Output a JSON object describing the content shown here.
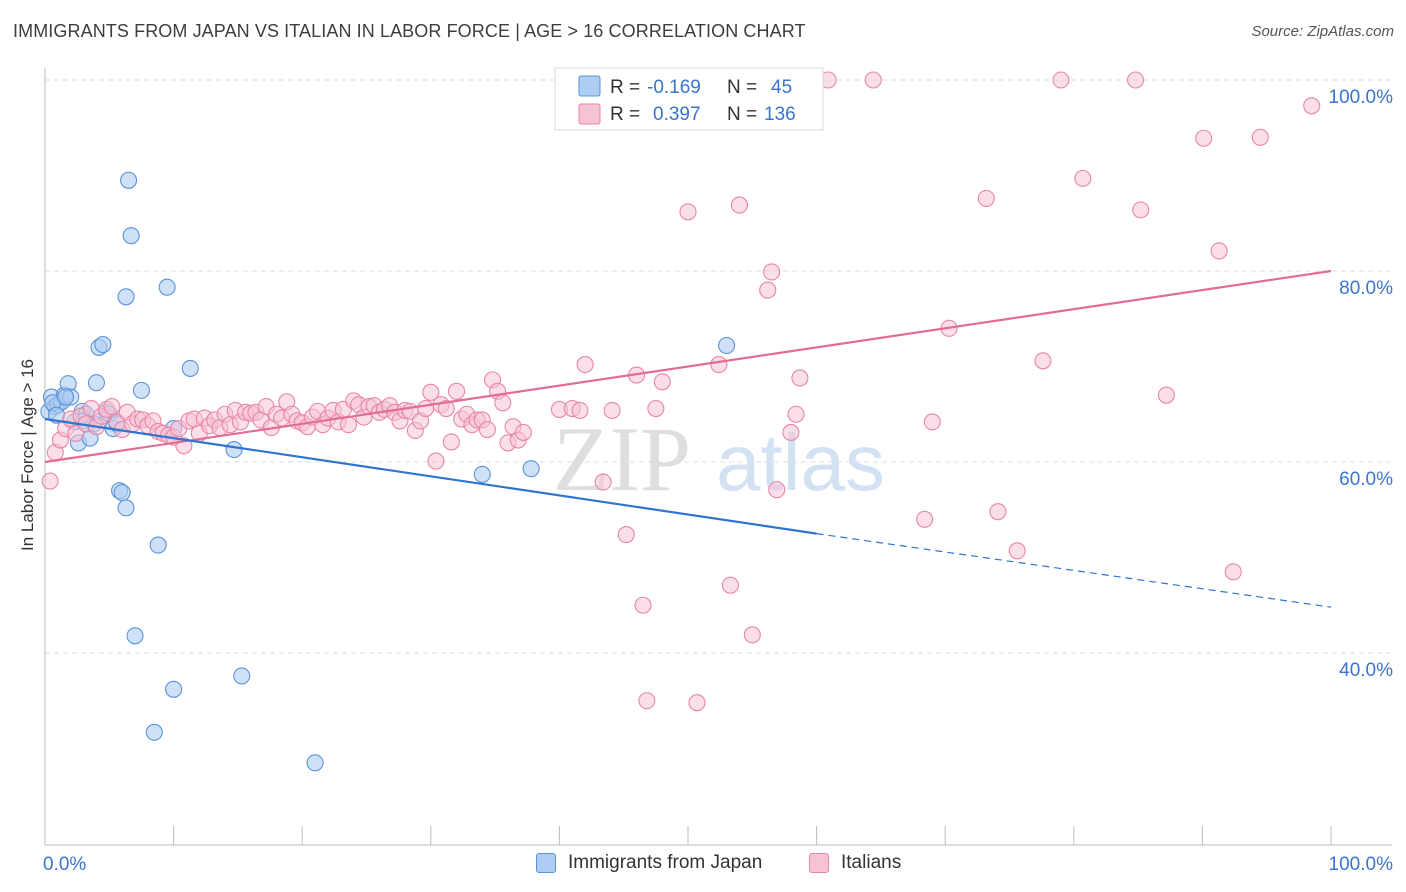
{
  "colors": {
    "blue_fill": "#aecdf2",
    "blue_stroke": "#5b93d8",
    "blue_line": "#2f74d0",
    "pink_fill": "#f6c3d5",
    "pink_stroke": "#e886a8",
    "pink_line": "#e36b97",
    "value_text": "#3a74d1",
    "grid": "#dcdcdc"
  },
  "chart_data": {
    "type": "scatter",
    "title": "IMMIGRANTS FROM JAPAN VS ITALIAN IN LABOR FORCE | AGE > 16 CORRELATION CHART",
    "source": "Source: ZipAtlas.com",
    "ylabel": "In Labor Force | Age > 16",
    "xlabel": "",
    "xlim": [
      0,
      100
    ],
    "ylim": [
      20,
      102
    ],
    "x_tick_labels": [
      "0.0%",
      "100.0%"
    ],
    "y_ticks": [
      40,
      60,
      80,
      100
    ],
    "y_tick_labels": [
      "40.0%",
      "60.0%",
      "80.0%",
      "100.0%"
    ],
    "watermark": {
      "zip": "ZIP",
      "atlas": "atlas"
    },
    "legend_box": [
      {
        "r_label": "R =",
        "r_value": "-0.169",
        "n_label": "N =",
        "n_value": "45"
      },
      {
        "r_label": "R =",
        "r_value": "0.397",
        "n_label": "N =",
        "n_value": "136"
      }
    ],
    "series": [
      {
        "name": "Immigrants from Japan",
        "color": "#aecdf2",
        "r": -0.169,
        "n": 45,
        "trend": {
          "x_start": 0,
          "y_start": 64.5,
          "x_end": 60,
          "y_end": 52.5,
          "dash_x_end": 100,
          "dash_y_end": 44.8
        },
        "points": [
          [
            0.3,
            65.3
          ],
          [
            0.5,
            66.8
          ],
          [
            0.8,
            65.8
          ],
          [
            1.0,
            66.0
          ],
          [
            1.3,
            66.3
          ],
          [
            1.5,
            67.0
          ],
          [
            1.8,
            68.2
          ],
          [
            2.0,
            66.8
          ],
          [
            2.3,
            64.2
          ],
          [
            2.6,
            62.0
          ],
          [
            2.9,
            65.3
          ],
          [
            3.2,
            65.0
          ],
          [
            3.5,
            62.5
          ],
          [
            3.8,
            64.0
          ],
          [
            4.0,
            68.3
          ],
          [
            4.2,
            72.0
          ],
          [
            4.5,
            72.3
          ],
          [
            4.8,
            65.2
          ],
          [
            5.0,
            65.0
          ],
          [
            5.3,
            63.5
          ],
          [
            5.6,
            64.0
          ],
          [
            5.8,
            57.0
          ],
          [
            6.0,
            56.8
          ],
          [
            6.3,
            55.2
          ],
          [
            6.5,
            89.5
          ],
          [
            6.7,
            83.7
          ],
          [
            6.3,
            77.3
          ],
          [
            7.0,
            41.8
          ],
          [
            7.5,
            67.5
          ],
          [
            8.5,
            31.7
          ],
          [
            8.8,
            51.3
          ],
          [
            9.5,
            78.3
          ],
          [
            10.0,
            36.2
          ],
          [
            10.0,
            63.5
          ],
          [
            11.3,
            69.8
          ],
          [
            14.7,
            61.3
          ],
          [
            15.3,
            37.6
          ],
          [
            21.0,
            28.5
          ],
          [
            34.0,
            58.7
          ],
          [
            37.8,
            59.3
          ],
          [
            53.0,
            72.2
          ],
          [
            0.6,
            66.2
          ],
          [
            1.6,
            66.8
          ],
          [
            3.0,
            64.3
          ],
          [
            0.9,
            64.9
          ]
        ]
      },
      {
        "name": "Italians",
        "color": "#f6c3d5",
        "r": 0.397,
        "n": 136,
        "trend": {
          "x_start": 0,
          "y_start": 60.0,
          "x_end": 100,
          "y_end": 80.0
        },
        "points": [
          [
            0.4,
            58.0
          ],
          [
            0.8,
            61.0
          ],
          [
            1.2,
            62.3
          ],
          [
            1.6,
            63.5
          ],
          [
            2.0,
            64.5
          ],
          [
            2.4,
            63.0
          ],
          [
            2.8,
            64.8
          ],
          [
            3.2,
            64.0
          ],
          [
            3.6,
            65.6
          ],
          [
            4.0,
            63.7
          ],
          [
            4.4,
            64.8
          ],
          [
            4.8,
            65.5
          ],
          [
            5.2,
            65.8
          ],
          [
            5.6,
            64.2
          ],
          [
            6.0,
            63.4
          ],
          [
            6.4,
            65.2
          ],
          [
            6.8,
            64.0
          ],
          [
            7.2,
            64.5
          ],
          [
            7.6,
            64.4
          ],
          [
            8.0,
            63.8
          ],
          [
            8.4,
            64.3
          ],
          [
            8.8,
            63.2
          ],
          [
            9.2,
            63.0
          ],
          [
            9.6,
            62.8
          ],
          [
            10.0,
            62.6
          ],
          [
            10.4,
            63.5
          ],
          [
            10.8,
            61.7
          ],
          [
            11.2,
            64.3
          ],
          [
            11.6,
            64.5
          ],
          [
            12.0,
            63.0
          ],
          [
            12.4,
            64.6
          ],
          [
            12.8,
            63.8
          ],
          [
            13.2,
            64.4
          ],
          [
            13.6,
            63.6
          ],
          [
            14.0,
            65.0
          ],
          [
            14.4,
            63.9
          ],
          [
            14.8,
            65.4
          ],
          [
            15.2,
            64.2
          ],
          [
            15.6,
            65.2
          ],
          [
            16.0,
            65.1
          ],
          [
            16.4,
            65.2
          ],
          [
            16.8,
            64.4
          ],
          [
            17.2,
            65.8
          ],
          [
            17.6,
            63.6
          ],
          [
            18.0,
            65.0
          ],
          [
            18.4,
            64.6
          ],
          [
            18.8,
            66.3
          ],
          [
            19.2,
            65.0
          ],
          [
            19.6,
            64.3
          ],
          [
            20.0,
            64.1
          ],
          [
            20.4,
            63.7
          ],
          [
            20.8,
            64.7
          ],
          [
            21.2,
            65.3
          ],
          [
            21.6,
            63.9
          ],
          [
            22.0,
            64.6
          ],
          [
            22.4,
            65.4
          ],
          [
            22.8,
            64.2
          ],
          [
            23.2,
            65.5
          ],
          [
            23.6,
            63.9
          ],
          [
            24.0,
            66.4
          ],
          [
            24.4,
            66.0
          ],
          [
            24.8,
            64.7
          ],
          [
            25.2,
            65.8
          ],
          [
            25.6,
            65.9
          ],
          [
            26.0,
            65.2
          ],
          [
            26.4,
            65.5
          ],
          [
            26.8,
            65.9
          ],
          [
            27.2,
            65.2
          ],
          [
            27.6,
            64.3
          ],
          [
            28.0,
            65.4
          ],
          [
            28.4,
            65.3
          ],
          [
            28.8,
            63.3
          ],
          [
            29.2,
            64.3
          ],
          [
            29.6,
            65.6
          ],
          [
            30.0,
            67.3
          ],
          [
            30.4,
            60.1
          ],
          [
            30.8,
            66.0
          ],
          [
            31.2,
            65.6
          ],
          [
            31.6,
            62.1
          ],
          [
            32.0,
            67.4
          ],
          [
            32.4,
            64.5
          ],
          [
            32.8,
            65.0
          ],
          [
            33.2,
            63.9
          ],
          [
            33.6,
            64.4
          ],
          [
            34.0,
            64.4
          ],
          [
            34.4,
            63.4
          ],
          [
            34.8,
            68.6
          ],
          [
            35.2,
            67.4
          ],
          [
            35.6,
            66.2
          ],
          [
            36.0,
            62.0
          ],
          [
            36.4,
            63.7
          ],
          [
            36.8,
            62.3
          ],
          [
            37.2,
            63.1
          ],
          [
            40.0,
            65.5
          ],
          [
            41.0,
            65.6
          ],
          [
            41.6,
            65.4
          ],
          [
            42.0,
            70.2
          ],
          [
            43.4,
            57.9
          ],
          [
            44.1,
            65.4
          ],
          [
            46.0,
            69.1
          ],
          [
            47.5,
            65.6
          ],
          [
            48.0,
            68.4
          ],
          [
            50.0,
            86.2
          ],
          [
            52.4,
            70.2
          ],
          [
            54.0,
            86.9
          ],
          [
            56.2,
            78.0
          ],
          [
            56.5,
            79.9
          ],
          [
            56.9,
            57.1
          ],
          [
            58.4,
            65.0
          ],
          [
            58.0,
            63.1
          ],
          [
            58.7,
            68.8
          ],
          [
            60.9,
            100.0
          ],
          [
            64.4,
            100.0
          ],
          [
            68.4,
            54.0
          ],
          [
            69.0,
            64.2
          ],
          [
            70.3,
            74.0
          ],
          [
            73.2,
            87.6
          ],
          [
            74.1,
            54.8
          ],
          [
            75.6,
            50.7
          ],
          [
            77.6,
            70.6
          ],
          [
            79.0,
            100.0
          ],
          [
            80.7,
            89.7
          ],
          [
            84.8,
            100.0
          ],
          [
            85.2,
            86.4
          ],
          [
            87.2,
            67.0
          ],
          [
            90.1,
            93.9
          ],
          [
            91.3,
            82.1
          ],
          [
            92.4,
            48.5
          ],
          [
            94.5,
            94.0
          ],
          [
            98.5,
            97.3
          ],
          [
            45.2,
            52.4
          ],
          [
            46.5,
            45.0
          ],
          [
            46.8,
            35.0
          ],
          [
            50.7,
            34.8
          ],
          [
            53.3,
            47.1
          ],
          [
            55.0,
            41.9
          ]
        ]
      }
    ]
  }
}
